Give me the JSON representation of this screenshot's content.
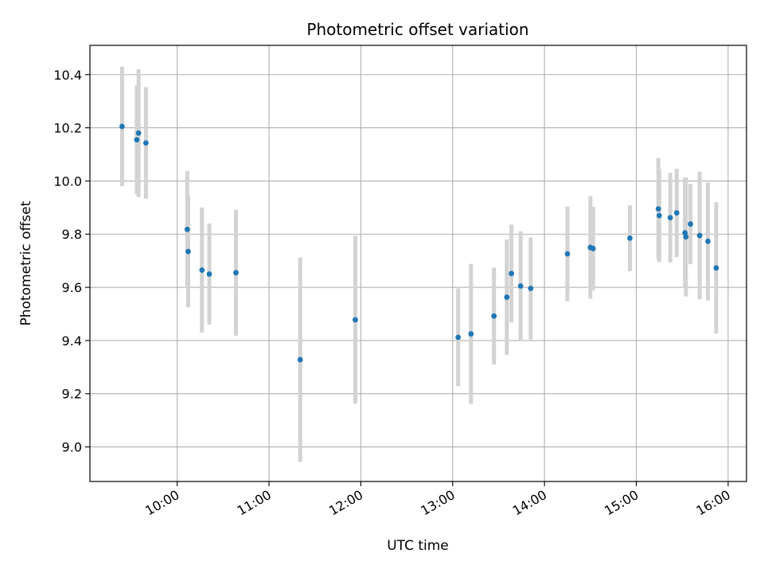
{
  "chart_data": {
    "type": "scatter",
    "title": "Photometric offset variation",
    "xlabel": "UTC time",
    "ylabel": "Photometric offset",
    "x_unit": "hours UTC",
    "xlim": [
      9.05,
      16.2
    ],
    "ylim": [
      8.87,
      10.51
    ],
    "x_ticks": [
      {
        "value": 10,
        "label": "10:00"
      },
      {
        "value": 11,
        "label": "11:00"
      },
      {
        "value": 12,
        "label": "12:00"
      },
      {
        "value": 13,
        "label": "13:00"
      },
      {
        "value": 14,
        "label": "14:00"
      },
      {
        "value": 15,
        "label": "15:00"
      },
      {
        "value": 16,
        "label": "16:00"
      }
    ],
    "y_ticks": [
      {
        "value": 9.0,
        "label": "9.0"
      },
      {
        "value": 9.2,
        "label": "9.2"
      },
      {
        "value": 9.4,
        "label": "9.4"
      },
      {
        "value": 9.6,
        "label": "9.6"
      },
      {
        "value": 9.8,
        "label": "9.8"
      },
      {
        "value": 10.0,
        "label": "10.0"
      },
      {
        "value": 10.2,
        "label": "10.2"
      },
      {
        "value": 10.4,
        "label": "10.4"
      }
    ],
    "grid": true,
    "point_color": "#1f77b4",
    "errorbar_color": "#d3d3d3",
    "points": [
      {
        "x": 9.4,
        "y": 10.205,
        "err": 0.225
      },
      {
        "x": 9.56,
        "y": 10.155,
        "err": 0.205
      },
      {
        "x": 9.58,
        "y": 10.18,
        "err": 0.24
      },
      {
        "x": 9.66,
        "y": 10.143,
        "err": 0.21
      },
      {
        "x": 10.11,
        "y": 9.818,
        "err": 0.22
      },
      {
        "x": 10.12,
        "y": 9.735,
        "err": 0.21
      },
      {
        "x": 10.27,
        "y": 9.665,
        "err": 0.235
      },
      {
        "x": 10.35,
        "y": 9.65,
        "err": 0.19
      },
      {
        "x": 10.64,
        "y": 9.655,
        "err": 0.237
      },
      {
        "x": 11.34,
        "y": 9.328,
        "err": 0.384
      },
      {
        "x": 11.94,
        "y": 9.478,
        "err": 0.316
      },
      {
        "x": 13.06,
        "y": 9.412,
        "err": 0.184
      },
      {
        "x": 13.2,
        "y": 9.425,
        "err": 0.263
      },
      {
        "x": 13.45,
        "y": 9.492,
        "err": 0.182
      },
      {
        "x": 13.59,
        "y": 9.563,
        "err": 0.217
      },
      {
        "x": 13.64,
        "y": 9.652,
        "err": 0.184
      },
      {
        "x": 13.74,
        "y": 9.605,
        "err": 0.206
      },
      {
        "x": 13.85,
        "y": 9.596,
        "err": 0.192
      },
      {
        "x": 14.25,
        "y": 9.726,
        "err": 0.178
      },
      {
        "x": 14.5,
        "y": 9.75,
        "err": 0.193
      },
      {
        "x": 14.53,
        "y": 9.746,
        "err": 0.157
      },
      {
        "x": 14.93,
        "y": 9.785,
        "err": 0.124
      },
      {
        "x": 15.24,
        "y": 9.895,
        "err": 0.192
      },
      {
        "x": 15.25,
        "y": 9.87,
        "err": 0.175
      },
      {
        "x": 15.37,
        "y": 9.862,
        "err": 0.168
      },
      {
        "x": 15.44,
        "y": 9.88,
        "err": 0.166
      },
      {
        "x": 15.53,
        "y": 9.805,
        "err": 0.208
      },
      {
        "x": 15.54,
        "y": 9.79,
        "err": 0.224
      },
      {
        "x": 15.59,
        "y": 9.838,
        "err": 0.151
      },
      {
        "x": 15.69,
        "y": 9.795,
        "err": 0.24
      },
      {
        "x": 15.78,
        "y": 9.773,
        "err": 0.222
      },
      {
        "x": 15.87,
        "y": 9.673,
        "err": 0.247
      }
    ]
  }
}
